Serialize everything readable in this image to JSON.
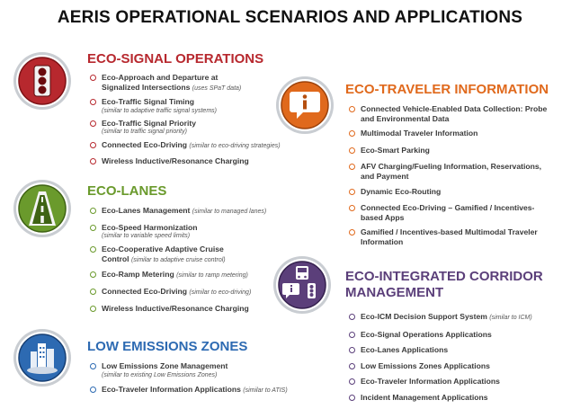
{
  "title": "AERIS OPERATIONAL SCENARIOS AND APPLICATIONS",
  "colors": {
    "signal": "#b7282e",
    "lanes": "#6a9a2c",
    "traveler": "#e0691c",
    "icm": "#5b3f7a",
    "lez": "#2d6ab2"
  },
  "sections": {
    "signal": {
      "title": "ECO-SIGNAL OPERATIONS",
      "icon": "traffic-light-icon",
      "items": [
        {
          "text": "Eco-Approach and Departure at",
          "text2": "Signalized Intersections",
          "note": "(uses SPaT data)"
        },
        {
          "text": "Eco-Traffic Signal Timing",
          "sub": "(similar to adaptive traffic signal systems)"
        },
        {
          "text": "Eco-Traffic Signal Priority",
          "sub": "(similar to traffic signal priority)"
        },
        {
          "text": "Connected Eco-Driving",
          "note": "(similar to eco-driving strategies)"
        },
        {
          "text": "Wireless Inductive/Resonance Charging"
        }
      ]
    },
    "lanes": {
      "title": "ECO-LANES",
      "icon": "road-icon",
      "items": [
        {
          "text": "Eco-Lanes Management",
          "note": "(similar to managed lanes)"
        },
        {
          "text": "Eco-Speed Harmonization",
          "sub": "(similar to variable speed limits)"
        },
        {
          "text": "Eco-Cooperative Adaptive Cruise",
          "text2": "Control",
          "note": "(similar to adaptive cruise control)"
        },
        {
          "text": "Eco-Ramp Metering",
          "note": "(similar to ramp metering)"
        },
        {
          "text": "Connected Eco-Driving",
          "note": "(similar to eco-driving)"
        },
        {
          "text": "Wireless Inductive/Resonance Charging"
        }
      ]
    },
    "lez": {
      "title": "LOW EMISSIONS ZONES",
      "icon": "city-icon",
      "items": [
        {
          "text": "Low Emissions Zone Management",
          "sub": "(similar to existing Low Emissions Zones)"
        },
        {
          "text": "Eco-Traveler Information Applications",
          "note": "(similar to ATIS)"
        }
      ]
    },
    "traveler": {
      "title": "ECO-TRAVELER INFORMATION",
      "icon": "info-bubble-icon",
      "items": [
        {
          "text": "Connected Vehicle-Enabled Data Collection: Probe",
          "text2": "and Environmental Data"
        },
        {
          "text": "Multimodal Traveler Information"
        },
        {
          "text": "Eco-Smart Parking"
        },
        {
          "text": "AFV Charging/Fueling Information, Reservations,",
          "text2": "and Payment"
        },
        {
          "text": "Dynamic Eco-Routing"
        },
        {
          "text": "Connected Eco-Driving – Gamified / Incentives-",
          "text2": "based Apps"
        },
        {
          "text": "Gamified / Incentives-based Multimodal Traveler",
          "text2": "Information"
        }
      ]
    },
    "icm": {
      "title": "ECO-INTEGRATED CORRIDOR",
      "title2": "MANAGEMENT",
      "icon": "corridor-icon",
      "items": [
        {
          "text": "Eco-ICM Decision Support System",
          "note": "(similar to ICM)"
        },
        {
          "text": "Eco-Signal Operations Applications"
        },
        {
          "text": "Eco-Lanes Applications"
        },
        {
          "text": "Low Emissions Zones Applications"
        },
        {
          "text": "Eco-Traveler Information Applications"
        },
        {
          "text": "Incident Management Applications"
        }
      ]
    }
  }
}
